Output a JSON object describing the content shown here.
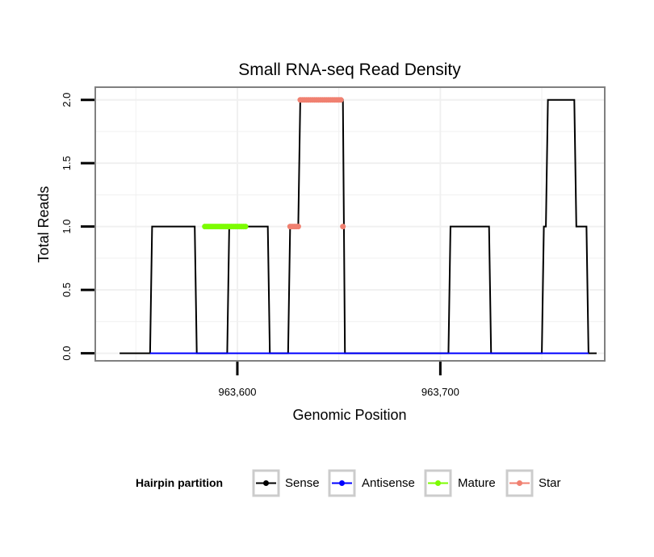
{
  "chart_data": {
    "type": "line",
    "title": "Small RNA-seq Read Density",
    "xlabel": "Genomic Position",
    "ylabel": "Total Reads",
    "xlim": [
      963530,
      963781
    ],
    "ylim": [
      -0.06,
      2.1
    ],
    "x_ticks": [
      963600,
      963700
    ],
    "x_tick_labels": [
      "963,600",
      "963,700"
    ],
    "y_ticks": [
      0,
      0.5,
      1,
      1.5,
      2
    ],
    "y_tick_labels": [
      "0.0",
      "0.5",
      "1.0",
      "1.5",
      "2.0"
    ],
    "grid": true,
    "legend_position": "bottom",
    "legend": {
      "title": "Hairpin partition",
      "entries": [
        {
          "name": "Sense",
          "color": "#000000"
        },
        {
          "name": "Antisense",
          "color": "#0000ff"
        },
        {
          "name": "Mature",
          "color": "#7cfc00"
        },
        {
          "name": "Star",
          "color": "#f08070"
        }
      ]
    },
    "series": [
      {
        "name": "Sense",
        "color": "#000000",
        "style": "line",
        "x": [
          963542,
          963557,
          963558,
          963579,
          963580,
          963595,
          963596,
          963615,
          963616,
          963625,
          963626,
          963630,
          963631,
          963652,
          963653,
          963704,
          963705,
          963724,
          963725,
          963750,
          963751,
          963752,
          963753,
          963766,
          963767,
          963772,
          963773,
          963777
        ],
        "y": [
          0,
          0,
          1,
          1,
          0,
          0,
          1,
          1,
          0,
          0,
          1,
          1,
          2,
          2,
          0,
          0,
          1,
          1,
          0,
          0,
          1,
          1,
          2,
          2,
          1,
          1,
          0,
          0
        ]
      },
      {
        "name": "Antisense",
        "color": "#0000ff",
        "style": "line",
        "x": [
          963557,
          963580,
          963595,
          963616,
          963625,
          963653,
          963704,
          963725,
          963750,
          963773
        ],
        "y": [
          0,
          0,
          0,
          0,
          0,
          0,
          0,
          0,
          0,
          0
        ]
      },
      {
        "name": "Mature",
        "color": "#7cfc00",
        "style": "points",
        "x": [
          963584,
          963585,
          963586,
          963587,
          963588,
          963589,
          963590,
          963591,
          963592,
          963593,
          963594,
          963595,
          963596,
          963597,
          963598,
          963599,
          963600,
          963601,
          963602,
          963603,
          963604
        ],
        "y": [
          1,
          1,
          1,
          1,
          1,
          1,
          1,
          1,
          1,
          1,
          1,
          1,
          1,
          1,
          1,
          1,
          1,
          1,
          1,
          1,
          1
        ]
      },
      {
        "name": "Star",
        "color": "#f08070",
        "style": "points",
        "x": [
          963626,
          963627,
          963628,
          963629,
          963630,
          963631,
          963632,
          963633,
          963634,
          963635,
          963636,
          963637,
          963638,
          963639,
          963640,
          963641,
          963642,
          963643,
          963644,
          963645,
          963646,
          963647,
          963648,
          963649,
          963650,
          963651,
          963652
        ],
        "y": [
          1,
          1,
          1,
          1,
          1,
          2,
          2,
          2,
          2,
          2,
          2,
          2,
          2,
          2,
          2,
          2,
          2,
          2,
          2,
          2,
          2,
          2,
          2,
          2,
          2,
          2,
          1
        ]
      }
    ]
  }
}
